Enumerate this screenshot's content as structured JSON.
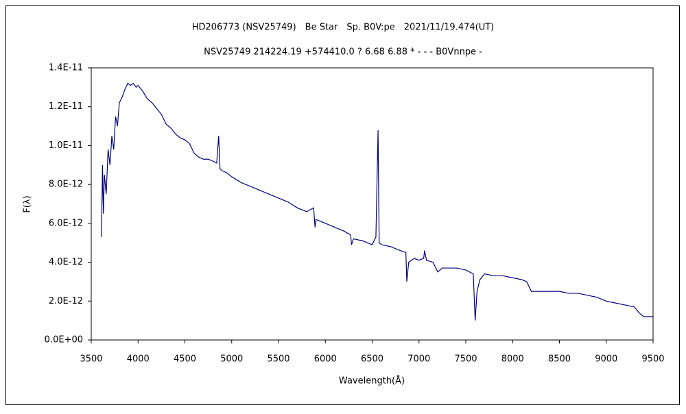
{
  "chart_data": {
    "type": "line",
    "title": "HD206773 (NSV25749)　Be Star　Sp. B0V:pe　2021/11/19.474(UT)",
    "subtitle": "NSV25749 214224.19 +574410.0 ? 6.68 6.88 * - - - B0Vnnpe -",
    "xlabel": "Wavelength(Å)",
    "ylabel": "F(λ)",
    "color": "#000080",
    "grid": false,
    "xlim": [
      3500,
      9500
    ],
    "xticks": [
      3500,
      4000,
      4500,
      5000,
      5500,
      6000,
      6500,
      7000,
      7500,
      8000,
      8500,
      9000,
      9500
    ],
    "ylim": [
      0,
      1.4e-11
    ],
    "yticks": [
      {
        "value": 0,
        "label": "0.0E+00"
      },
      {
        "value": 2e-12,
        "label": "2.0E-12"
      },
      {
        "value": 4e-12,
        "label": "4.0E-12"
      },
      {
        "value": 6e-12,
        "label": "6.0E-12"
      },
      {
        "value": 8e-12,
        "label": "8.0E-12"
      },
      {
        "value": 1e-11,
        "label": "1.0E-11"
      },
      {
        "value": 1.2e-11,
        "label": "1.2E-11"
      },
      {
        "value": 1.4e-11,
        "label": "1.4E-11"
      }
    ],
    "x": [
      3610,
      3620,
      3630,
      3640,
      3660,
      3680,
      3700,
      3720,
      3740,
      3760,
      3780,
      3800,
      3830,
      3860,
      3890,
      3920,
      3950,
      3980,
      4000,
      4050,
      4100,
      4150,
      4200,
      4250,
      4300,
      4350,
      4400,
      4450,
      4500,
      4550,
      4600,
      4650,
      4700,
      4750,
      4800,
      4840,
      4861,
      4875,
      4900,
      4950,
      5000,
      5100,
      5200,
      5300,
      5400,
      5500,
      5600,
      5700,
      5800,
      5875,
      5890,
      5900,
      6000,
      6100,
      6200,
      6270,
      6280,
      6300,
      6400,
      6500,
      6540,
      6563,
      6575,
      6600,
      6700,
      6800,
      6860,
      6870,
      6890,
      6950,
      7000,
      7050,
      7060,
      7080,
      7150,
      7200,
      7250,
      7300,
      7400,
      7500,
      7580,
      7600,
      7620,
      7650,
      7700,
      7800,
      7900,
      8000,
      8100,
      8150,
      8200,
      8300,
      8400,
      8500,
      8600,
      8700,
      8800,
      8900,
      9000,
      9100,
      9200,
      9300,
      9350,
      9400,
      9450,
      9500
    ],
    "values": [
      5.3e-12,
      9e-12,
      6.5e-12,
      8.5e-12,
      7.5e-12,
      9.8e-12,
      9e-12,
      1.05e-11,
      9.8e-12,
      1.15e-11,
      1.1e-11,
      1.22e-11,
      1.25e-11,
      1.29e-11,
      1.32e-11,
      1.31e-11,
      1.32e-11,
      1.3e-11,
      1.31e-11,
      1.28e-11,
      1.24e-11,
      1.22e-11,
      1.19e-11,
      1.16e-11,
      1.11e-11,
      1.09e-11,
      1.06e-11,
      1.04e-11,
      1.03e-11,
      1.01e-11,
      9.6e-12,
      9.4e-12,
      9.3e-12,
      9.3e-12,
      9.2e-12,
      9.1e-12,
      1.05e-11,
      8.8e-12,
      8.7e-12,
      8.6e-12,
      8.4e-12,
      8.1e-12,
      7.9e-12,
      7.7e-12,
      7.5e-12,
      7.3e-12,
      7.1e-12,
      6.8e-12,
      6.6e-12,
      6.8e-12,
      5.8e-12,
      6.2e-12,
      6e-12,
      5.8e-12,
      5.6e-12,
      5.4e-12,
      4.9e-12,
      5.2e-12,
      5.1e-12,
      4.9e-12,
      5.3e-12,
      1.08e-11,
      5e-12,
      4.9e-12,
      4.8e-12,
      4.6e-12,
      4.5e-12,
      3e-12,
      4e-12,
      4.2e-12,
      4.1e-12,
      4.2e-12,
      4.6e-12,
      4.1e-12,
      4e-12,
      3.5e-12,
      3.7e-12,
      3.7e-12,
      3.7e-12,
      3.6e-12,
      3.4e-12,
      1e-12,
      2.5e-12,
      3.1e-12,
      3.4e-12,
      3.3e-12,
      3.3e-12,
      3.2e-12,
      3.1e-12,
      3e-12,
      2.5e-12,
      2.5e-12,
      2.5e-12,
      2.5e-12,
      2.4e-12,
      2.4e-12,
      2.3e-12,
      2.2e-12,
      2e-12,
      1.9e-12,
      1.8e-12,
      1.7e-12,
      1.4e-12,
      1.2e-12,
      1.2e-12,
      1.2e-12
    ]
  }
}
